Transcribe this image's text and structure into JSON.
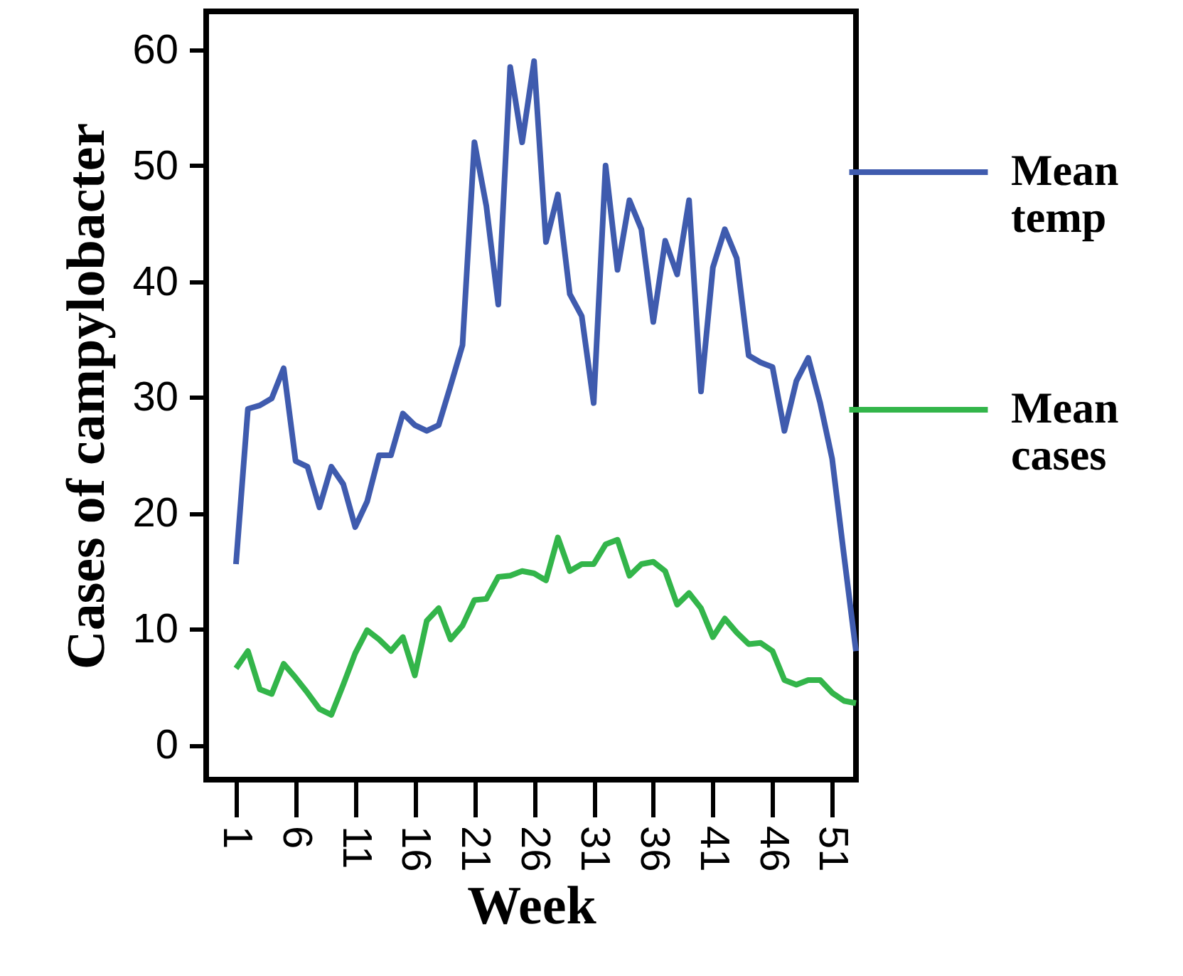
{
  "chart_data": {
    "type": "line",
    "xlabel": "Week",
    "ylabel": "Cases of campylobacter",
    "x": [
      1,
      2,
      3,
      4,
      5,
      6,
      7,
      8,
      9,
      10,
      11,
      12,
      13,
      14,
      15,
      16,
      17,
      18,
      19,
      20,
      21,
      22,
      23,
      24,
      25,
      26,
      27,
      28,
      29,
      30,
      31,
      32,
      33,
      34,
      35,
      36,
      37,
      38,
      39,
      40,
      41,
      42,
      43,
      44,
      45,
      46,
      47,
      48,
      49,
      50,
      51,
      52,
      53
    ],
    "series": [
      {
        "name": "Mean temp",
        "color": "#3f5bae",
        "values": [
          15.6,
          29,
          29.3,
          29.9,
          32.5,
          24.5,
          24,
          20.5,
          24,
          22.5,
          18.8,
          21,
          25,
          25,
          28.6,
          27.6,
          27.1,
          27.6,
          31,
          34.5,
          52,
          46.5,
          38,
          58.5,
          52,
          59,
          43.4,
          47.5,
          38.9,
          37,
          29.5,
          50,
          41,
          47,
          44.5,
          36.5,
          43.5,
          40.6,
          47,
          30.5,
          41.2,
          44.5,
          42,
          33.6,
          33,
          32.6,
          27.1,
          31.4,
          33.4,
          29.5,
          24.7,
          16.3,
          8.1
        ]
      },
      {
        "name": "Mean cases",
        "color": "#33b54a",
        "values": [
          6.6,
          8.1,
          4.8,
          4.4,
          7,
          5.8,
          4.5,
          3.1,
          2.6,
          5.2,
          7.9,
          9.9,
          9.1,
          8.1,
          9.3,
          6,
          10.7,
          11.8,
          9.1,
          10.3,
          12.5,
          12.6,
          14.5,
          14.6,
          15,
          14.8,
          14.2,
          17.9,
          15,
          15.6,
          15.6,
          17.3,
          17.7,
          14.6,
          15.6,
          15.8,
          15,
          12.1,
          13.1,
          11.8,
          9.3,
          10.9,
          9.7,
          8.7,
          8.8,
          8.1,
          5.6,
          5.2,
          5.6,
          5.6,
          4.5,
          3.8,
          3.6
        ]
      }
    ],
    "xlim": [
      -1.5,
      53
    ],
    "xticks": [
      1,
      6,
      11,
      16,
      21,
      26,
      31,
      36,
      41,
      46,
      51
    ],
    "ylim": [
      -3,
      63.3
    ],
    "yticks": [
      0,
      10,
      20,
      30,
      40,
      50,
      60
    ],
    "grid": false,
    "legend": "right",
    "marker": "none",
    "line_style": "solid"
  }
}
